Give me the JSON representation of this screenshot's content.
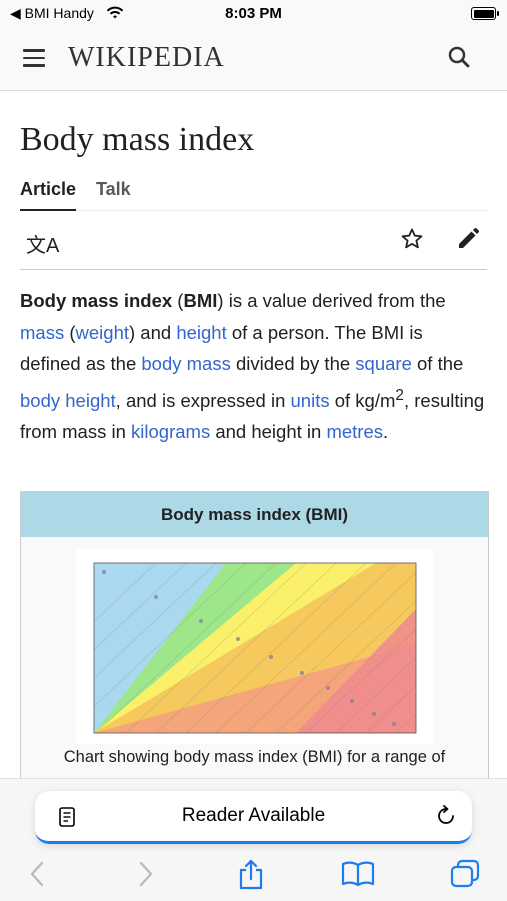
{
  "status_bar": {
    "back_app": "◀ BMI Handy",
    "time": "8:03 PM"
  },
  "header": {
    "logo": "WIKIPEDIA"
  },
  "article": {
    "title": "Body mass index",
    "tabs": [
      {
        "label": "Article",
        "active": true
      },
      {
        "label": "Talk",
        "active": false
      }
    ],
    "paragraph": {
      "t1": "Body mass index",
      "t2": " (",
      "t3": "BMI",
      "t4": ") is a value derived from the ",
      "l1": "mass",
      "t5": " (",
      "l2": "weight",
      "t6": ") and ",
      "l3": "height",
      "t7": " of a person. The BMI is defined as the ",
      "l4": "body mass",
      "t8": " divided by the ",
      "l5": "square",
      "t9": " of the ",
      "l6": "body height",
      "t10": ", and is expressed in ",
      "l7": "units",
      "t11": " of kg/m",
      "sup": "2",
      "t12": ", resulting from mass in ",
      "l8": "kilograms",
      "t13": " and height in ",
      "l9": "metres",
      "t14": "."
    },
    "infobox": {
      "title": "Body mass index (BMI)",
      "caption": "Chart showing body mass index (BMI) for a range of"
    }
  },
  "bottom_bar": {
    "reader_label": "Reader Available"
  },
  "colors": {
    "link": "#3366cc",
    "infobox_header": "#add8e6",
    "accent": "#1e7bf0"
  }
}
